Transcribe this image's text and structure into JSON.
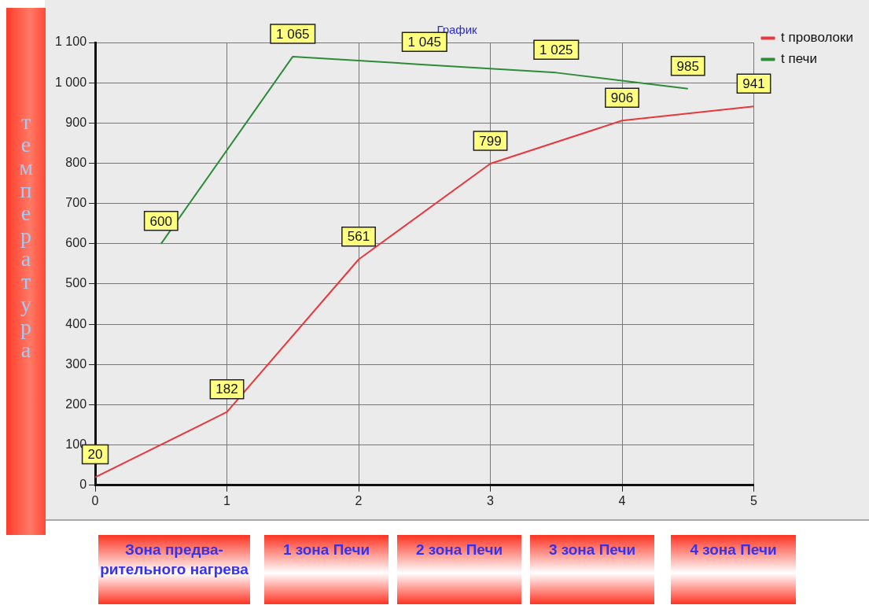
{
  "chart_data": {
    "type": "line",
    "title": "График",
    "ylabel": "температура",
    "xlim": [
      0,
      5
    ],
    "xticks": [
      0,
      1,
      2,
      3,
      4,
      5
    ],
    "ylim": [
      0,
      1100
    ],
    "yticks": [
      0,
      100,
      200,
      300,
      400,
      500,
      600,
      700,
      800,
      900,
      {
        "value": 1000,
        "label": "1 000"
      },
      {
        "value": 1100,
        "label": "1 100"
      }
    ],
    "series": [
      {
        "name": "t проволоки",
        "color": "#e8383d",
        "x": [
          0,
          1,
          2,
          3,
          4,
          5
        ],
        "values": [
          20,
          182,
          561,
          799,
          906,
          941
        ],
        "value_labels": [
          "20",
          "182",
          "561",
          "799",
          "906",
          "941"
        ]
      },
      {
        "name": "t печи",
        "color": "#2e8b3a",
        "x": [
          0.5,
          1.5,
          2.5,
          3.5,
          4.5
        ],
        "values": [
          600,
          1065,
          1045,
          1025,
          985
        ],
        "value_labels": [
          "600",
          "1 065",
          "1 045",
          "1 025",
          "985"
        ]
      }
    ],
    "grid": true,
    "line_style": "solid",
    "marker": "none",
    "legend": "top right",
    "annotations": [
      "Зона предва-рительного нагрева",
      "1 зона Печи",
      "2  зона Печи",
      "3 зона Печи",
      "4 зона Печи"
    ]
  }
}
